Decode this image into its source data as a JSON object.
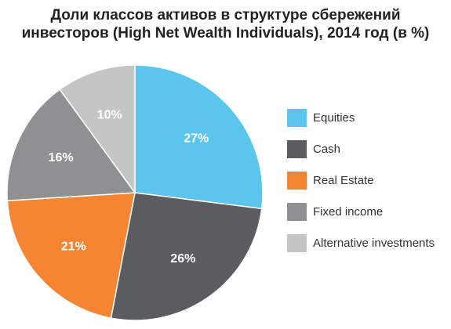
{
  "chart_data": {
    "type": "pie",
    "title_lines": [
      "Доли классов активов в структуре сбережений",
      "инвесторов (High Net Wealth Individuals), 2014 год (в %)"
    ],
    "slices": [
      {
        "name": "Equities",
        "value": 27,
        "label": "27%",
        "color": "#5bc5ee"
      },
      {
        "name": "Cash",
        "value": 26,
        "label": "26%",
        "color": "#5a5c5f"
      },
      {
        "name": "Real Estate",
        "value": 21,
        "label": "21%",
        "color": "#f58533"
      },
      {
        "name": "Fixed income",
        "value": 16,
        "label": "16%",
        "color": "#8e9092"
      },
      {
        "name": "Alternative investments",
        "value": 10,
        "label": "10%",
        "color": "#c4c6c6"
      }
    ],
    "legend_position": "right",
    "start": "top",
    "direction": "clockwise"
  }
}
